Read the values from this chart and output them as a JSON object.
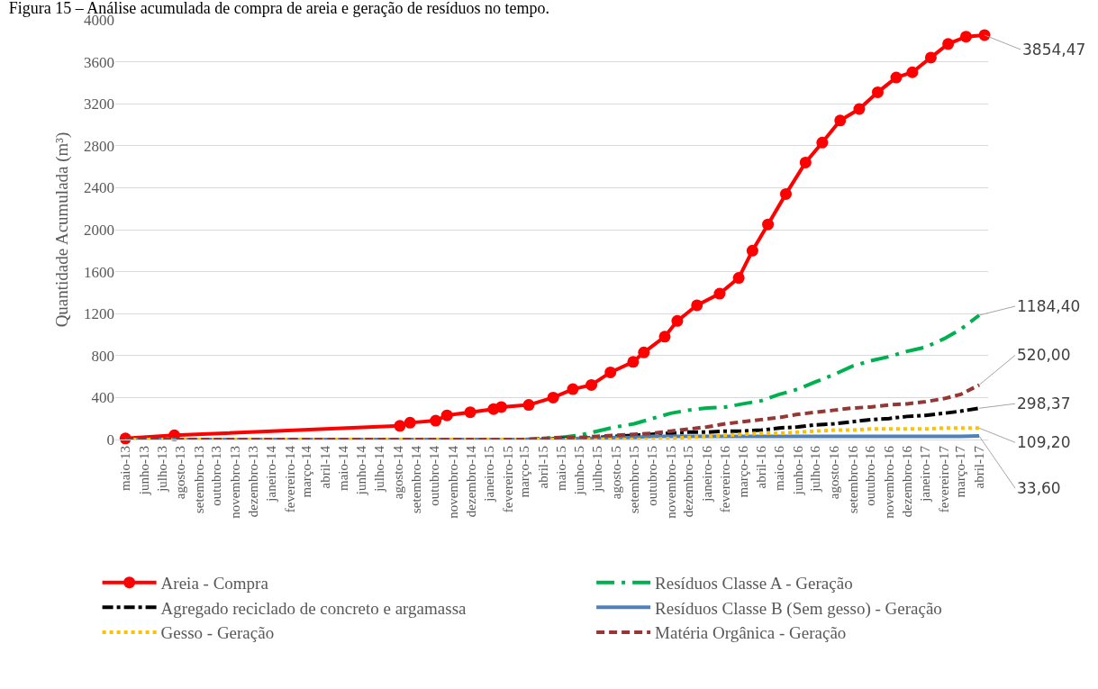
{
  "chart_data": {
    "type": "line",
    "title": "Figura 15 – Análise acumulada de compra de areia e geração de resíduos no tempo.",
    "ylabel": "Quantidade Acumulada (m³)",
    "x": [
      "2013-05-01",
      "2015-03-01",
      "2015-04-01",
      "2015-05-01",
      "2015-06-01",
      "2015-07-01",
      "2015-08-01",
      "2015-09-01",
      "2015-10-01",
      "2015-11-01",
      "2015-12-01",
      "2016-01-01",
      "2016-02-01",
      "2016-03-01",
      "2016-04-01",
      "2016-05-01",
      "2016-06-01",
      "2016-07-01",
      "2016-08-01",
      "2016-09-01",
      "2016-10-01",
      "2016-11-01",
      "2016-12-01",
      "2017-01-01",
      "2017-02-01",
      "2017-03-01",
      "2017-04-01"
    ],
    "series": [
      {
        "name": "Areia - Compra",
        "color": "#ff0000",
        "line_style": "solid",
        "marker": "circle",
        "x": [
          "2013-05-01",
          "2013-07-22",
          "2014-08-04",
          "2014-08-21",
          "2014-10-03",
          "2014-10-22",
          "2014-11-30",
          "2015-01-08",
          "2015-01-21",
          "2015-03-08",
          "2015-04-18",
          "2015-05-21",
          "2015-06-21",
          "2015-07-23",
          "2015-08-30",
          "2015-09-17",
          "2015-10-22",
          "2015-11-12",
          "2015-12-15",
          "2016-01-22",
          "2016-02-23",
          "2016-03-17",
          "2016-04-12",
          "2016-05-12",
          "2016-06-14",
          "2016-07-12",
          "2016-08-11",
          "2016-09-12",
          "2016-10-13",
          "2016-11-13",
          "2016-12-10",
          "2017-01-10",
          "2017-02-08",
          "2017-03-10",
          "2017-04-10"
        ],
        "values": [
          10,
          40,
          130,
          160,
          180,
          230,
          260,
          290,
          310,
          330,
          400,
          480,
          520,
          640,
          740,
          830,
          980,
          1130,
          1280,
          1390,
          1540,
          1800,
          2050,
          2340,
          2640,
          2830,
          3040,
          3150,
          3310,
          3450,
          3500,
          3640,
          3770,
          3840,
          3854.47
        ],
        "value_labels": [
          null,
          null,
          null,
          null,
          null,
          null,
          null,
          null,
          null,
          null,
          null,
          null,
          null,
          null,
          null,
          null,
          null,
          null,
          null,
          null,
          null,
          null,
          null,
          null,
          null,
          null,
          null,
          null,
          null,
          null,
          null,
          null,
          null,
          null,
          "3854,47"
        ]
      },
      {
        "name": "Resíduos Classe A - Geração",
        "color": "#00b050",
        "line_style": "longdashdot",
        "marker": "none",
        "values": [
          0,
          0,
          10,
          20,
          40,
          80,
          120,
          150,
          200,
          250,
          280,
          300,
          310,
          340,
          370,
          430,
          480,
          550,
          620,
          700,
          750,
          790,
          840,
          880,
          960,
          1050,
          1184.4
        ],
        "value_labels": [
          null,
          null,
          null,
          null,
          null,
          null,
          null,
          null,
          null,
          null,
          null,
          null,
          null,
          null,
          null,
          null,
          null,
          null,
          null,
          null,
          null,
          null,
          null,
          null,
          null,
          null,
          "1184,40"
        ]
      },
      {
        "name": "Agregado reciclado de concreto e argamassa",
        "color": "#000000",
        "line_style": "dashdot",
        "marker": "none",
        "values": [
          0,
          0,
          0,
          10,
          10,
          20,
          30,
          40,
          50,
          60,
          70,
          70,
          80,
          80,
          90,
          110,
          120,
          140,
          150,
          170,
          190,
          200,
          220,
          230,
          250,
          270,
          298.37
        ],
        "value_labels": [
          null,
          null,
          null,
          null,
          null,
          null,
          null,
          null,
          null,
          null,
          null,
          null,
          null,
          null,
          null,
          null,
          null,
          null,
          null,
          null,
          null,
          null,
          null,
          null,
          null,
          null,
          "298,37"
        ]
      },
      {
        "name": "Resíduos Classe B (Sem gesso) - Geração",
        "color": "#4f81bd",
        "line_style": "solid",
        "marker": "none",
        "values": [
          0,
          0,
          0,
          0,
          10,
          10,
          20,
          20,
          30,
          30,
          30,
          30,
          30,
          30,
          30,
          30,
          30,
          30,
          30,
          30,
          30,
          30,
          30,
          30,
          30,
          30,
          33.6
        ],
        "value_labels": [
          null,
          null,
          null,
          null,
          null,
          null,
          null,
          null,
          null,
          null,
          null,
          null,
          null,
          null,
          null,
          null,
          null,
          null,
          null,
          null,
          null,
          null,
          null,
          null,
          null,
          null,
          "33,60"
        ]
      },
      {
        "name": "Gesso - Geração",
        "color": "#ffc000",
        "line_style": "dotted",
        "marker": "none",
        "values": [
          0,
          0,
          0,
          0,
          0,
          0,
          0,
          0,
          0,
          10,
          20,
          30,
          40,
          50,
          60,
          60,
          70,
          80,
          90,
          90,
          100,
          100,
          100,
          100,
          110,
          110,
          109.2
        ],
        "value_labels": [
          null,
          null,
          null,
          null,
          null,
          null,
          null,
          null,
          null,
          null,
          null,
          null,
          null,
          null,
          null,
          null,
          null,
          null,
          null,
          null,
          null,
          null,
          null,
          null,
          null,
          null,
          "109,20"
        ]
      },
      {
        "name": "Matéria Orgânica - Geração",
        "color": "#953735",
        "line_style": "dashed",
        "marker": "none",
        "values": [
          0,
          0,
          10,
          20,
          20,
          30,
          40,
          50,
          60,
          80,
          100,
          120,
          150,
          170,
          190,
          210,
          240,
          260,
          280,
          300,
          310,
          330,
          340,
          360,
          390,
          430,
          520
        ],
        "value_labels": [
          null,
          null,
          null,
          null,
          null,
          null,
          null,
          null,
          null,
          null,
          null,
          null,
          null,
          null,
          null,
          null,
          null,
          null,
          null,
          null,
          null,
          null,
          null,
          null,
          null,
          null,
          "520,00"
        ]
      }
    ],
    "xlim": [
      "2013-04-14",
      "2017-04-16"
    ],
    "xticks": [
      {
        "value": "2013-05-01",
        "label": "maio-13"
      },
      {
        "value": "2013-06-01",
        "label": "junho-13"
      },
      {
        "value": "2013-07-01",
        "label": "julho-13"
      },
      {
        "value": "2013-08-01",
        "label": "agosto-13"
      },
      {
        "value": "2013-09-01",
        "label": "setembro-13"
      },
      {
        "value": "2013-10-01",
        "label": "outubro-13"
      },
      {
        "value": "2013-11-01",
        "label": "novembro-13"
      },
      {
        "value": "2013-12-01",
        "label": "dezembro-13"
      },
      {
        "value": "2014-01-01",
        "label": "janeiro-14"
      },
      {
        "value": "2014-02-01",
        "label": "fevereiro-14"
      },
      {
        "value": "2014-03-01",
        "label": "março-14"
      },
      {
        "value": "2014-04-01",
        "label": "abril-14"
      },
      {
        "value": "2014-05-01",
        "label": "maio-14"
      },
      {
        "value": "2014-06-01",
        "label": "junho-14"
      },
      {
        "value": "2014-07-01",
        "label": "julho-14"
      },
      {
        "value": "2014-08-01",
        "label": "agosto-14"
      },
      {
        "value": "2014-09-01",
        "label": "setembro-14"
      },
      {
        "value": "2014-10-01",
        "label": "outubro-14"
      },
      {
        "value": "2014-11-01",
        "label": "novembro-14"
      },
      {
        "value": "2014-12-01",
        "label": "dezembro-14"
      },
      {
        "value": "2015-01-01",
        "label": "janeiro-15"
      },
      {
        "value": "2015-02-01",
        "label": "fevereiro-15"
      },
      {
        "value": "2015-03-01",
        "label": "março-15"
      },
      {
        "value": "2015-04-01",
        "label": "abril-15"
      },
      {
        "value": "2015-05-01",
        "label": "maio-15"
      },
      {
        "value": "2015-06-01",
        "label": "junho-15"
      },
      {
        "value": "2015-07-01",
        "label": "julho-15"
      },
      {
        "value": "2015-08-01",
        "label": "agosto-15"
      },
      {
        "value": "2015-09-01",
        "label": "setembro-15"
      },
      {
        "value": "2015-10-01",
        "label": "outubro-15"
      },
      {
        "value": "2015-11-01",
        "label": "novembro-15"
      },
      {
        "value": "2015-12-01",
        "label": "dezembro-15"
      },
      {
        "value": "2016-01-01",
        "label": "janeiro-16"
      },
      {
        "value": "2016-02-01",
        "label": "fevereiro-16"
      },
      {
        "value": "2016-03-01",
        "label": "março-16"
      },
      {
        "value": "2016-04-01",
        "label": "abril-16"
      },
      {
        "value": "2016-05-01",
        "label": "maio-16"
      },
      {
        "value": "2016-06-01",
        "label": "junho-16"
      },
      {
        "value": "2016-07-01",
        "label": "julho-16"
      },
      {
        "value": "2016-08-01",
        "label": "agosto-16"
      },
      {
        "value": "2016-09-01",
        "label": "setembro-16"
      },
      {
        "value": "2016-10-01",
        "label": "outubro-16"
      },
      {
        "value": "2016-11-01",
        "label": "novembro-16"
      },
      {
        "value": "2016-12-01",
        "label": "dezembro-16"
      },
      {
        "value": "2017-01-01",
        "label": "janeiro-17"
      },
      {
        "value": "2017-02-01",
        "label": "fevereiro-17"
      },
      {
        "value": "2017-03-01",
        "label": "março-17"
      },
      {
        "value": "2017-04-01",
        "label": "abril-17"
      }
    ],
    "ylim": [
      0,
      4000
    ],
    "yticks": [
      0,
      400,
      800,
      1200,
      1600,
      2000,
      2400,
      2800,
      3200,
      3600,
      4000
    ],
    "grid": "y",
    "legend": "bottom"
  }
}
